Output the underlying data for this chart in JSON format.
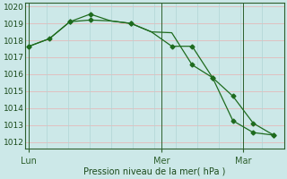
{
  "line1_x": [
    0,
    1,
    2,
    3,
    4,
    5,
    6,
    7,
    8,
    9,
    10,
    11,
    12
  ],
  "line1_y": [
    1017.65,
    1018.1,
    1019.1,
    1019.2,
    1019.15,
    1019.0,
    1018.5,
    1017.65,
    1017.65,
    1015.8,
    1013.25,
    1012.55,
    1012.4
  ],
  "line2_x": [
    0,
    1,
    2,
    3,
    4,
    5,
    6,
    7,
    8,
    9,
    10,
    11,
    12
  ],
  "line2_y": [
    1017.65,
    1018.1,
    1019.1,
    1019.55,
    1019.15,
    1019.0,
    1018.5,
    1018.45,
    1016.55,
    1015.8,
    1014.7,
    1013.1,
    1012.4
  ],
  "line1_markers_x": [
    0,
    1,
    2,
    3,
    5,
    7,
    8,
    9,
    10,
    11,
    12
  ],
  "line1_markers_y": [
    1017.65,
    1018.1,
    1019.1,
    1019.2,
    1019.0,
    1017.65,
    1017.65,
    1015.8,
    1013.25,
    1012.55,
    1012.4
  ],
  "line2_markers_x": [
    0,
    2,
    3,
    5,
    8,
    9,
    10,
    11,
    12
  ],
  "line2_markers_y": [
    1017.65,
    1019.1,
    1019.55,
    1019.0,
    1016.55,
    1015.8,
    1014.7,
    1013.1,
    1012.4
  ],
  "vline_x": [
    0.0,
    6.5,
    10.5
  ],
  "xtick_x": [
    0.0,
    6.5,
    10.5
  ],
  "xticklabels": [
    "Lun",
    "Mer",
    "Mar"
  ],
  "ylim": [
    1011.6,
    1020.2
  ],
  "yticks": [
    1012,
    1013,
    1014,
    1015,
    1016,
    1017,
    1018,
    1019,
    1020
  ],
  "xlim": [
    -0.2,
    12.5
  ],
  "xlabel": "Pression niveau de la mer( hPa )",
  "line_color": "#1e6b1e",
  "bg_color": "#cce8e8",
  "grid_h_color": "#e8b0b0",
  "grid_v_color": "#b0d4d4",
  "spine_color": "#2d5f2d"
}
